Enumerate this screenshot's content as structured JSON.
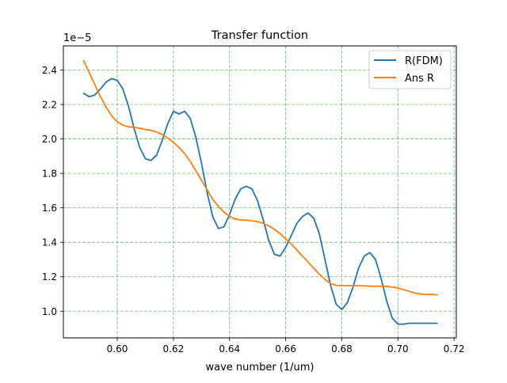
{
  "chart_data": {
    "type": "line",
    "title": "Transfer function",
    "xlabel": "wave number (1/um)",
    "ylabel": "",
    "y_offset_label": "1e−5",
    "xlim": [
      0.5808,
      0.7208
    ],
    "ylim": [
      0.0845,
      0.254
    ],
    "xticks": [
      0.6,
      0.62,
      0.64,
      0.66,
      0.68,
      0.7,
      0.72
    ],
    "xtick_labels": [
      "0.60",
      "0.62",
      "0.64",
      "0.66",
      "0.68",
      "0.70",
      "0.72"
    ],
    "yticks": [
      0.1,
      0.12,
      0.14,
      0.16,
      0.18,
      0.2,
      0.22,
      0.24
    ],
    "ytick_labels": [
      "1.0",
      "1.2",
      "1.4",
      "1.6",
      "1.8",
      "2.0",
      "2.2",
      "2.4"
    ],
    "grid": true,
    "legend_position": "upper-right",
    "series": [
      {
        "name": "R(FDM)",
        "color": "#1f77b4",
        "x": [
          0.588,
          0.59,
          0.592,
          0.594,
          0.596,
          0.598,
          0.6,
          0.602,
          0.604,
          0.606,
          0.608,
          0.61,
          0.612,
          0.614,
          0.616,
          0.618,
          0.62,
          0.622,
          0.624,
          0.626,
          0.628,
          0.63,
          0.632,
          0.634,
          0.636,
          0.638,
          0.64,
          0.642,
          0.644,
          0.646,
          0.648,
          0.65,
          0.652,
          0.654,
          0.656,
          0.658,
          0.66,
          0.662,
          0.664,
          0.666,
          0.668,
          0.67,
          0.672,
          0.674,
          0.676,
          0.678,
          0.68,
          0.682,
          0.684,
          0.686,
          0.688,
          0.69,
          0.692,
          0.694,
          0.696,
          0.698,
          0.7,
          0.702,
          0.704,
          0.706,
          0.708,
          0.71,
          0.712,
          0.714
        ],
        "y": [
          0.2265,
          0.2245,
          0.2255,
          0.229,
          0.233,
          0.235,
          0.234,
          0.229,
          0.219,
          0.206,
          0.195,
          0.1885,
          0.1875,
          0.1905,
          0.199,
          0.209,
          0.216,
          0.2145,
          0.216,
          0.212,
          0.201,
          0.186,
          0.169,
          0.155,
          0.148,
          0.149,
          0.156,
          0.165,
          0.171,
          0.1725,
          0.171,
          0.164,
          0.153,
          0.141,
          0.133,
          0.132,
          0.137,
          0.144,
          0.151,
          0.155,
          0.157,
          0.154,
          0.145,
          0.13,
          0.115,
          0.104,
          0.101,
          0.105,
          0.114,
          0.125,
          0.132,
          0.134,
          0.13,
          0.119,
          0.106,
          0.096,
          0.0925,
          0.0925,
          0.093,
          0.093,
          0.093,
          0.093,
          0.093,
          0.093
        ]
      },
      {
        "name": "Ans R",
        "color": "#ff7f0e",
        "x": [
          0.588,
          0.59,
          0.592,
          0.594,
          0.596,
          0.598,
          0.6,
          0.602,
          0.604,
          0.606,
          0.608,
          0.61,
          0.612,
          0.614,
          0.616,
          0.618,
          0.62,
          0.622,
          0.624,
          0.626,
          0.628,
          0.63,
          0.632,
          0.634,
          0.636,
          0.638,
          0.64,
          0.642,
          0.644,
          0.646,
          0.648,
          0.65,
          0.652,
          0.654,
          0.656,
          0.658,
          0.66,
          0.662,
          0.664,
          0.666,
          0.668,
          0.67,
          0.672,
          0.674,
          0.676,
          0.678,
          0.68,
          0.682,
          0.684,
          0.686,
          0.688,
          0.69,
          0.692,
          0.694,
          0.696,
          0.698,
          0.7,
          0.702,
          0.704,
          0.706,
          0.708,
          0.71,
          0.712,
          0.714
        ],
        "y": [
          0.2455,
          0.2385,
          0.2315,
          0.2245,
          0.2185,
          0.2135,
          0.21,
          0.208,
          0.207,
          0.2068,
          0.2062,
          0.2055,
          0.205,
          0.204,
          0.2025,
          0.2005,
          0.198,
          0.195,
          0.1915,
          0.187,
          0.1815,
          0.176,
          0.1705,
          0.165,
          0.161,
          0.1575,
          0.155,
          0.1535,
          0.153,
          0.1528,
          0.1525,
          0.152,
          0.151,
          0.1495,
          0.1475,
          0.145,
          0.142,
          0.139,
          0.1355,
          0.132,
          0.1285,
          0.125,
          0.1215,
          0.1185,
          0.116,
          0.115,
          0.1148,
          0.1148,
          0.1148,
          0.1148,
          0.1147,
          0.1146,
          0.1145,
          0.1145,
          0.1144,
          0.114,
          0.1135,
          0.1125,
          0.1115,
          0.1105,
          0.11,
          0.1097,
          0.1097,
          0.1095
        ]
      }
    ]
  }
}
